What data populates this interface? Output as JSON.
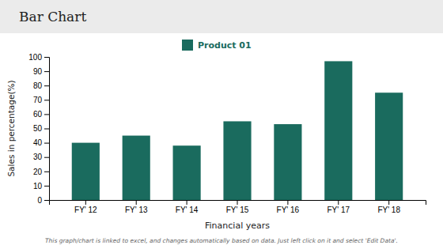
{
  "chart_data": {
    "type": "bar",
    "title": "Bar Chart",
    "categories": [
      "FY' 12",
      "FY' 13",
      "FY' 14",
      "FY' 15",
      "FY' 16",
      "FY' 17",
      "FY' 18"
    ],
    "series": [
      {
        "name": "Product 01",
        "color": "#1a6b5e",
        "values": [
          40,
          45,
          38,
          55,
          53,
          97,
          75
        ]
      }
    ],
    "xlabel": "Financial years",
    "ylabel": "Sales in percentage(%)",
    "ylim": [
      0,
      100
    ],
    "yticks": [
      0,
      10,
      20,
      30,
      40,
      50,
      60,
      70,
      80,
      90,
      100
    ],
    "grid": false,
    "legend": "top",
    "footnote": "This graph/chart is linked to excel, and changes automatically based on data. Just left click on it and select 'Edit Data'."
  }
}
